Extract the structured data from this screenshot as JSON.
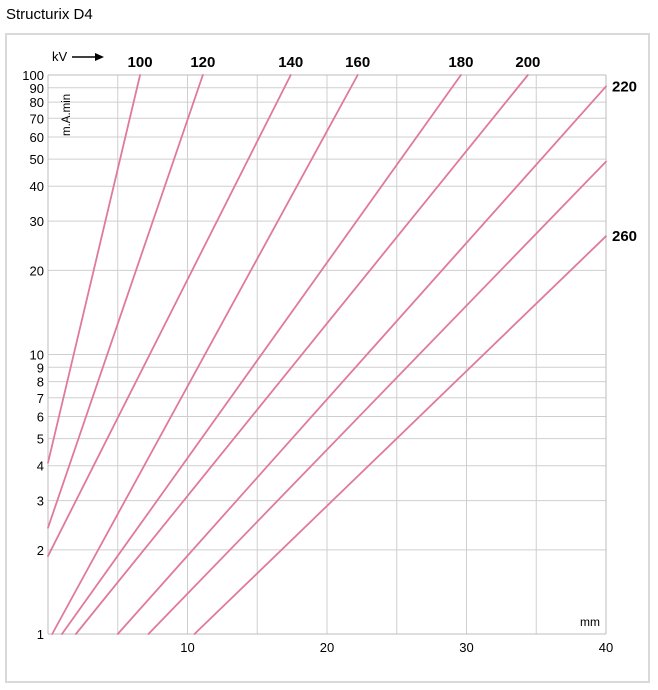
{
  "page": {
    "title": "Structurix D4"
  },
  "chart_data": {
    "type": "line",
    "title": "Structurix D4",
    "xlabel": "mm",
    "ylabel": "m.A.min",
    "series_label": "kV",
    "xlim": [
      0,
      40
    ],
    "ylim": [
      1,
      100
    ],
    "y_scale": "log",
    "grid": true,
    "x_ticks": [
      10,
      20,
      30,
      40
    ],
    "x_grid": [
      5,
      10,
      15,
      20,
      25,
      30,
      35
    ],
    "y_ticks": [
      1,
      2,
      3,
      4,
      5,
      6,
      7,
      8,
      9,
      10,
      20,
      30,
      40,
      50,
      60,
      70,
      80,
      90,
      100
    ],
    "y_grid": [
      2,
      3,
      4,
      5,
      6,
      7,
      8,
      9,
      10,
      20,
      30,
      40,
      50,
      60,
      70,
      80,
      90
    ],
    "line_color": "#e07a9a",
    "series": [
      {
        "name": "100",
        "points": [
          [
            0,
            4.1
          ],
          [
            6.6,
            100
          ]
        ]
      },
      {
        "name": "120",
        "points": [
          [
            0,
            2.4
          ],
          [
            11.1,
            100
          ]
        ]
      },
      {
        "name": "140",
        "points": [
          [
            0,
            1.9
          ],
          [
            17.4,
            100
          ]
        ]
      },
      {
        "name": "160",
        "points": [
          [
            0.3,
            1.0
          ],
          [
            22.2,
            100
          ]
        ]
      },
      {
        "name": "180",
        "points": [
          [
            1.0,
            1.0
          ],
          [
            29.6,
            100
          ]
        ]
      },
      {
        "name": "200",
        "points": [
          [
            2.0,
            1.0
          ],
          [
            34.4,
            100
          ]
        ]
      },
      {
        "name": "220",
        "points": [
          [
            5.0,
            1.0
          ],
          [
            40,
            91
          ]
        ]
      },
      {
        "name": "",
        "points": [
          [
            7.2,
            1.0
          ],
          [
            40,
            49
          ]
        ]
      },
      {
        "name": "260",
        "points": [
          [
            10.5,
            1.0
          ],
          [
            40,
            26.5
          ]
        ]
      }
    ]
  }
}
